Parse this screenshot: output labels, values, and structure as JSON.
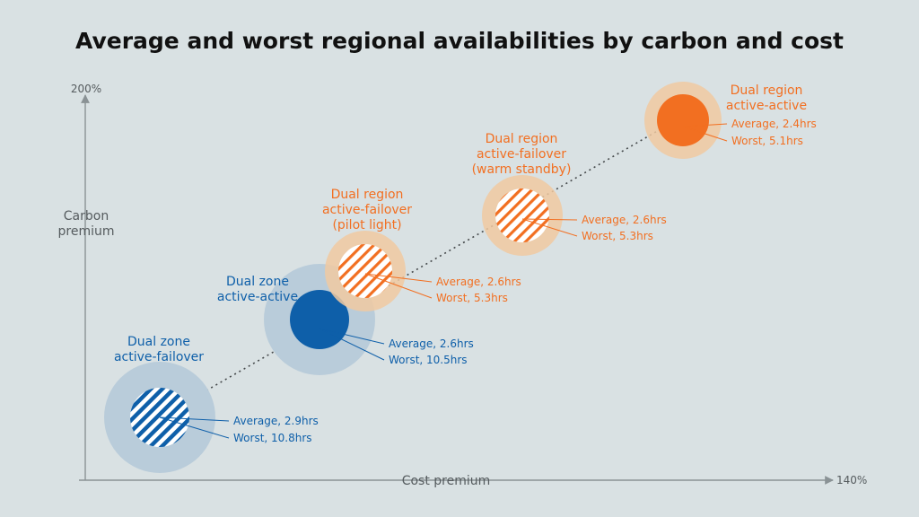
{
  "title": "Average and worst regional availabilities by carbon and cost",
  "axes": {
    "y_max_label": "200%",
    "y_title": [
      "Carbon",
      "premium"
    ],
    "x_title": "Cost premium",
    "x_max_label": "140%"
  },
  "colors": {
    "background": "#d9e1e3",
    "zone_blue": "#0e5fa9",
    "zone_halo": "#b9ccda",
    "region_orange": "#f26f21",
    "region_halo": "#f0c9a1",
    "axis": "#8a9295"
  },
  "architectures": [
    {
      "id": "dual-zone-active-failover",
      "title": [
        "Dual zone",
        "active-failover"
      ],
      "family": "zone",
      "fill": "hatched",
      "average": "Average, 2.9hrs",
      "worst": "Worst, 10.8hrs"
    },
    {
      "id": "dual-zone-active-active",
      "title": [
        "Dual zone",
        "active-active"
      ],
      "family": "zone",
      "fill": "solid",
      "average": "Average, 2.6hrs",
      "worst": "Worst, 10.5hrs"
    },
    {
      "id": "dual-region-pilot-light",
      "title": [
        "Dual region",
        "active-failover",
        "(pilot light)"
      ],
      "family": "region",
      "fill": "hatched",
      "average": "Average, 2.6hrs",
      "worst": "Worst, 5.3hrs"
    },
    {
      "id": "dual-region-warm-standby",
      "title": [
        "Dual region",
        "active-failover",
        "(warm standby)"
      ],
      "family": "region",
      "fill": "hatched",
      "average": "Average, 2.6hrs",
      "worst": "Worst, 5.3hrs"
    },
    {
      "id": "dual-region-active-active",
      "title": [
        "Dual region",
        "active-active"
      ],
      "family": "region",
      "fill": "solid",
      "average": "Average, 2.4hrs",
      "worst": "Worst, 5.1hrs"
    }
  ]
}
